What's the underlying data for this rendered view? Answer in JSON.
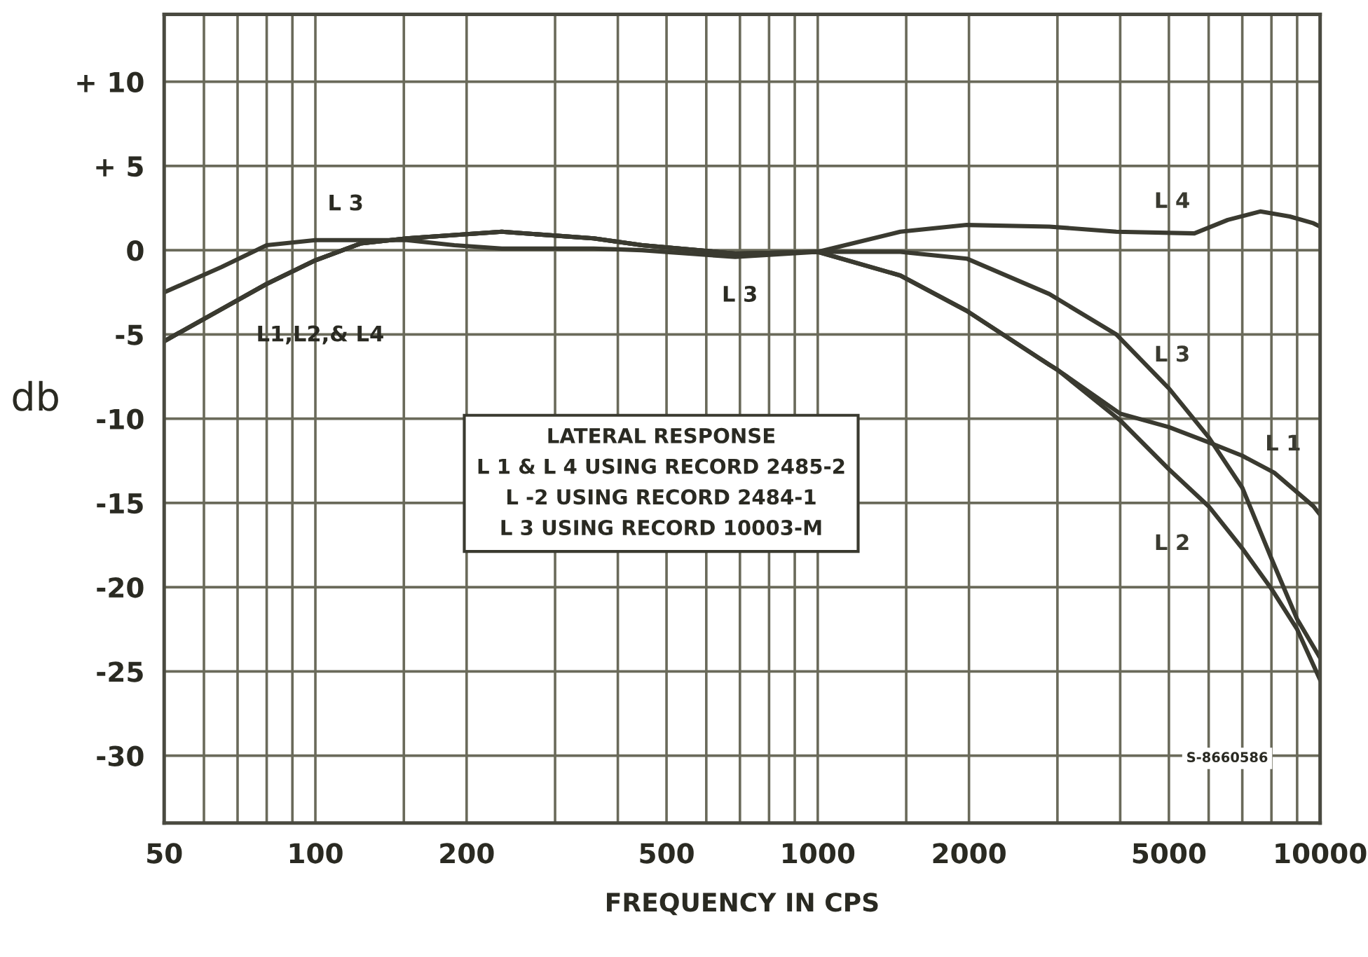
{
  "chart_data": {
    "type": "line",
    "xlabel": "FREQUENCY IN CPS",
    "ylabel": "db",
    "series": [
      {
        "name": "L 1",
        "color": "#3a3a30",
        "x": [
          50,
          65,
          80,
          100,
          123,
          152,
          235,
          358,
          447,
          685,
          1000,
          1460,
          1980,
          2890,
          3000,
          4000,
          5000,
          6000,
          7000,
          8100,
          9700,
          10000
        ],
        "values": [
          -5.4,
          -3.5,
          -2.0,
          -0.6,
          0.4,
          0.7,
          1.1,
          0.7,
          0.3,
          -0.2,
          -0.1,
          -1.5,
          -3.6,
          -6.8,
          -7.1,
          -9.7,
          -10.5,
          -11.4,
          -12.2,
          -13.2,
          -15.2,
          -15.7
        ]
      },
      {
        "name": "L 2",
        "color": "#3a3a30",
        "x": [
          50,
          65,
          80,
          100,
          123,
          152,
          235,
          358,
          447,
          685,
          1000,
          1460,
          1980,
          2890,
          3000,
          4000,
          5000,
          6000,
          7000,
          8000,
          9000,
          10000
        ],
        "values": [
          -5.4,
          -3.5,
          -2.0,
          -0.6,
          0.4,
          0.7,
          1.1,
          0.7,
          0.3,
          -0.2,
          -0.1,
          -1.5,
          -3.6,
          -6.8,
          -7.1,
          -10.1,
          -13.0,
          -15.2,
          -17.7,
          -20.1,
          -22.5,
          -25.5
        ]
      },
      {
        "name": "L 3",
        "color": "#3a3a30",
        "x": [
          50,
          65,
          80,
          100,
          152,
          189,
          235,
          358,
          447,
          685,
          1000,
          1460,
          1980,
          2890,
          3930,
          5000,
          6000,
          7000,
          8000,
          9000,
          10000
        ],
        "values": [
          -2.5,
          -1.0,
          0.3,
          0.6,
          0.6,
          0.3,
          0.1,
          0.1,
          0.0,
          -0.4,
          -0.1,
          -0.1,
          -0.5,
          -2.6,
          -5.0,
          -8.2,
          -11.1,
          -14.1,
          -18.3,
          -21.9,
          -24.2
        ]
      },
      {
        "name": "L 4",
        "color": "#3a3a30",
        "x": [
          50,
          65,
          80,
          100,
          123,
          152,
          235,
          358,
          447,
          685,
          1000,
          1460,
          1980,
          2890,
          3930,
          5620,
          6550,
          7600,
          8700,
          9700,
          10000
        ],
        "values": [
          -5.4,
          -3.5,
          -2.0,
          -0.6,
          0.4,
          0.7,
          1.1,
          0.7,
          0.3,
          -0.2,
          -0.1,
          1.1,
          1.5,
          1.4,
          1.1,
          1.0,
          1.8,
          2.3,
          2.0,
          1.6,
          1.4
        ]
      }
    ],
    "log": "x",
    "xlim": [
      50,
      10000
    ],
    "ylim": [
      -34,
      14
    ],
    "xticks": [
      50,
      {
        "value": 60,
        "label": null
      },
      {
        "value": 70,
        "label": null
      },
      {
        "value": 80,
        "label": null
      },
      {
        "value": 90,
        "label": null
      },
      100,
      {
        "value": 150,
        "label": null
      },
      200,
      {
        "value": 300,
        "label": null
      },
      {
        "value": 400,
        "label": null
      },
      500,
      {
        "value": 600,
        "label": null
      },
      {
        "value": 700,
        "label": null
      },
      {
        "value": 800,
        "label": null
      },
      {
        "value": 900,
        "label": null
      },
      1000,
      {
        "value": 1500,
        "label": null
      },
      2000,
      {
        "value": 3000,
        "label": null
      },
      {
        "value": 4000,
        "label": null
      },
      5000,
      {
        "value": 6000,
        "label": null
      },
      {
        "value": 7000,
        "label": null
      },
      {
        "value": 8000,
        "label": null
      },
      {
        "value": 9000,
        "label": null
      },
      10000
    ],
    "yticks": [
      {
        "value": 10,
        "label": "+ 10"
      },
      {
        "value": 5,
        "label": "+ 5"
      },
      0,
      -5,
      -10,
      -15,
      -20,
      -25,
      -30
    ],
    "grid": true,
    "legend": false,
    "marker": "none",
    "line_style": "solid",
    "annotations": [
      "L 3",
      "L1,L2,& L4",
      "L 3",
      "LATERAL RESPONSE",
      "L 1 & L 4 USING RECORD 2485-2",
      "L -2 USING RECORD 2484-1",
      "L 3 USING RECORD 10003-M",
      "S-8660586"
    ]
  }
}
